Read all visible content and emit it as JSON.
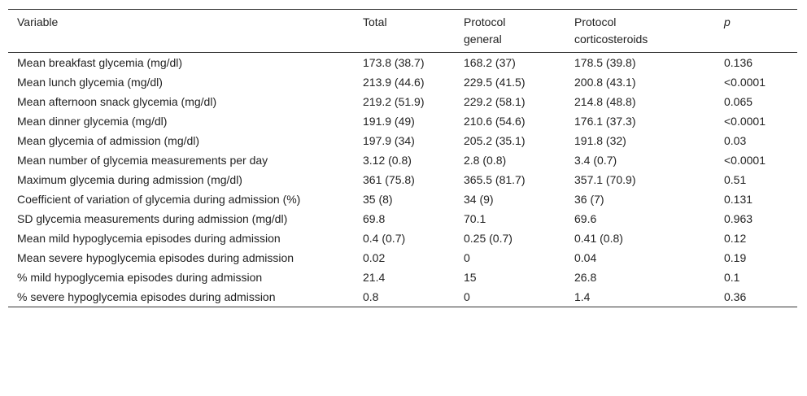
{
  "table": {
    "columns": [
      "Variable",
      "Total",
      "Protocol general",
      "Protocol corticosteroids",
      "p"
    ],
    "rows": [
      [
        "Mean breakfast glycemia (mg/dl)",
        "173.8 (38.7)",
        "168.2 (37)",
        "178.5 (39.8)",
        "0.136"
      ],
      [
        "Mean lunch glycemia (mg/dl)",
        "213.9 (44.6)",
        "229.5 (41.5)",
        "200.8 (43.1)",
        "<0.0001"
      ],
      [
        "Mean afternoon snack glycemia (mg/dl)",
        "219.2 (51.9)",
        "229.2 (58.1)",
        "214.8 (48.8)",
        "0.065"
      ],
      [
        "Mean dinner glycemia (mg/dl)",
        "191.9 (49)",
        "210.6 (54.6)",
        "176.1 (37.3)",
        "<0.0001"
      ],
      [
        "Mean glycemia of admission (mg/dl)",
        "197.9 (34)",
        "205.2 (35.1)",
        "191.8 (32)",
        "0.03"
      ],
      [
        "Mean number of glycemia measurements per day",
        "3.12 (0.8)",
        "2.8 (0.8)",
        "3.4 (0.7)",
        "<0.0001"
      ],
      [
        "Maximum glycemia during admission (mg/dl)",
        "361 (75.8)",
        "365.5 (81.7)",
        "357.1 (70.9)",
        "0.51"
      ],
      [
        "Coefficient of variation of glycemia during admission (%)",
        "35 (8)",
        "34 (9)",
        "36 (7)",
        "0.131"
      ],
      [
        "SD glycemia measurements during admission (mg/dl)",
        "69.8",
        "70.1",
        "69.6",
        "0.963"
      ],
      [
        "Mean mild hypoglycemia episodes during admission",
        "0.4 (0.7)",
        "0.25 (0.7)",
        "0.41 (0.8)",
        "0.12"
      ],
      [
        "Mean severe hypoglycemia episodes during admission",
        "0.02",
        "0",
        "0.04",
        "0.19"
      ],
      [
        "% mild hypoglycemia episodes during admission",
        "21.4",
        "15",
        "26.8",
        "0.1"
      ],
      [
        "% severe hypoglycemia episodes during admission",
        "0.8",
        "0",
        "1.4",
        "0.36"
      ]
    ]
  }
}
